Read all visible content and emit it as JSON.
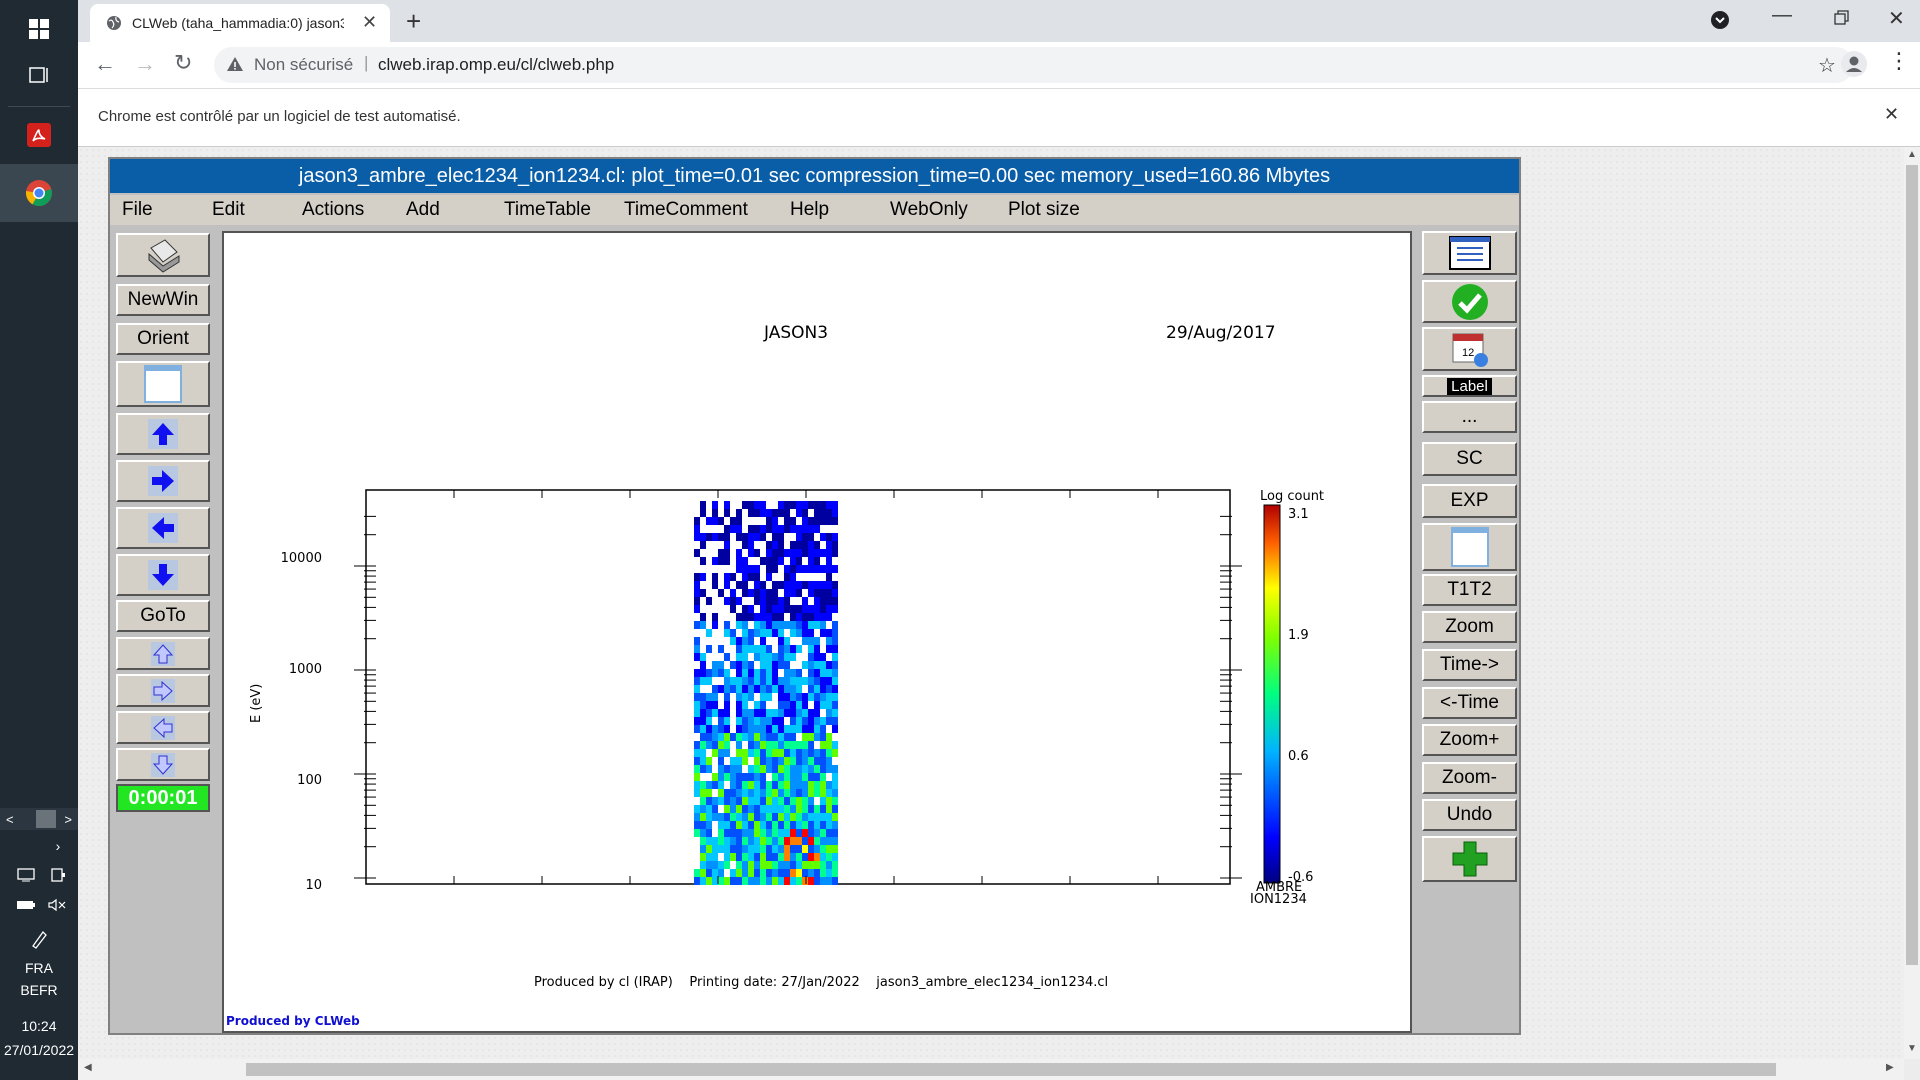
{
  "taskbar": {
    "language": "FRA",
    "layout": "BEFR",
    "time": "10:24",
    "date": "27/01/2022",
    "icons": [
      "windows-icon",
      "task-view-icon",
      "acrobat-icon",
      "chrome-icon"
    ]
  },
  "browser": {
    "tab_title": "CLWeb (taha_hammadia:0) jason3",
    "security_label": "Non sécurisé",
    "url": "clweb.irap.omp.eu/cl/clweb.php",
    "infobar_text": "Chrome est contrôlé par un logiciel de test automatisé."
  },
  "app": {
    "title": "jason3_ambre_elec1234_ion1234.cl:    plot_time=0.01 sec  compression_time=0.00 sec  memory_used=160.86 Mbytes",
    "menu": [
      "File",
      "Edit",
      "Actions",
      "Add",
      "TimeTable",
      "TimeComment",
      "Help",
      "WebOnly",
      "Plot size"
    ],
    "left_buttons": {
      "newwin": "NewWin",
      "orient": "Orient",
      "goto": "GoTo",
      "timer": "0:00:01"
    },
    "right_buttons": {
      "label": "Label",
      "dots": "...",
      "sc": "SC",
      "exp": "EXP",
      "t1t2": "T1T2",
      "zoom": "Zoom",
      "time_fwd": "Time->",
      "time_back": "<-Time",
      "zoom_plus": "Zoom+",
      "zoom_minus": "Zoom-",
      "undo": "Undo"
    }
  },
  "plot": {
    "mission": "JASON3",
    "date": "29/Aug/2017",
    "ylabel": "E (eV)",
    "yticks": [
      "10000",
      "1000",
      "100",
      "10"
    ],
    "colorbar_title": "Log count",
    "colorbar_ticks": [
      "3.1",
      "1.9",
      "0.6",
      "-0.6"
    ],
    "instrument": "AMBRE",
    "species": "ION1234",
    "footer": "Produced by cl (IRAP)    Printing date: 27/Jan/2022    jason3_ambre_elec1234_ion1234.cl",
    "credit": "Produced by CLWeb"
  },
  "chart_data": {
    "type": "heatmap",
    "title": "JASON3",
    "xlabel": "",
    "ylabel": "E (eV)",
    "y_scale": "log",
    "ylim": [
      10,
      30000
    ],
    "y_ticks": [
      10,
      100,
      1000,
      10000
    ],
    "colorbar": {
      "label": "Log count",
      "range": [
        -0.6,
        3.1
      ],
      "ticks": [
        3.1,
        1.9,
        0.6,
        -0.6
      ]
    },
    "annotations": [
      "AMBRE",
      "ION1234",
      "29/Aug/2017"
    ]
  }
}
